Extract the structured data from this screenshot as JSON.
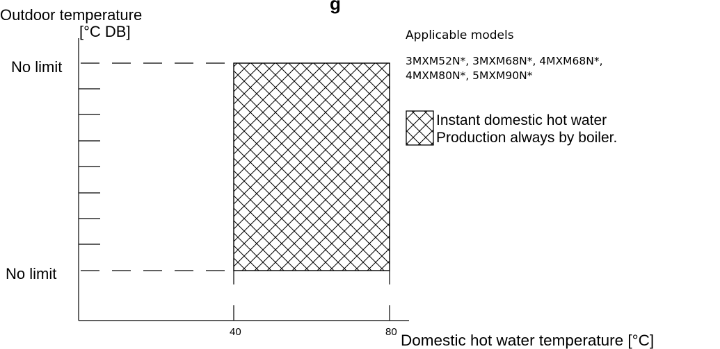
{
  "chart": {
    "title_partial": "g",
    "y_axis": {
      "label_line1": "Outdoor temperature",
      "label_line2": "[°C DB]",
      "top_label": "No limit",
      "bottom_label": "No limit"
    },
    "x_axis": {
      "label": "Domestic hot water temperature [°C]",
      "ticks": [
        "40",
        "80"
      ]
    },
    "region": {
      "x_range": [
        40,
        80
      ],
      "y_range": [
        "No limit",
        "No limit"
      ]
    }
  },
  "legend": {
    "heading": "Applicable models",
    "models_line1": "3MXM52N*, 3MXM68N*, 4MXM68N*,",
    "models_line2": "4MXM80N*, 5MXM90N*",
    "entry_line1": "Instant domestic hot water",
    "entry_line2": "Production always by boiler."
  }
}
